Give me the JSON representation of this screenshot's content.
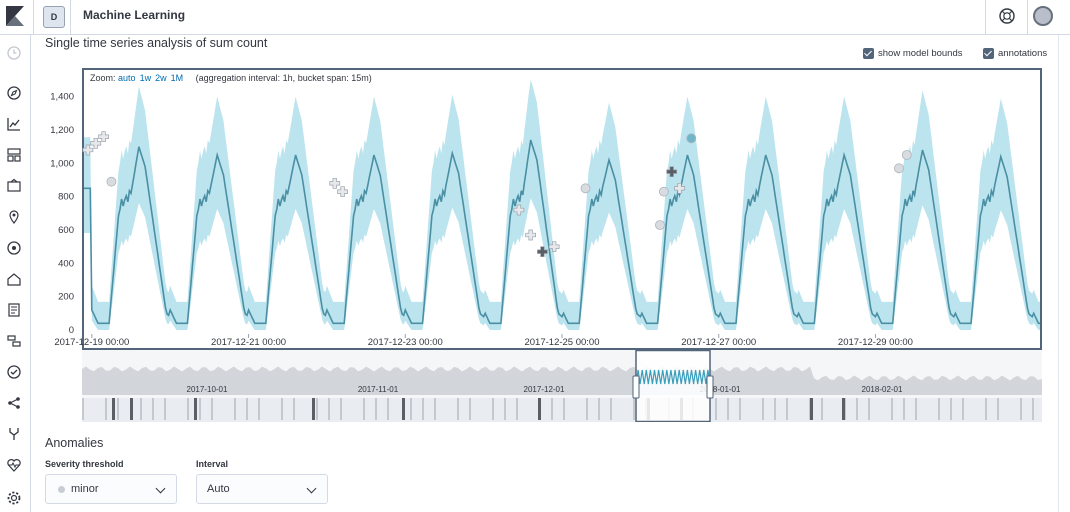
{
  "header": {
    "app_badge": "D",
    "app_title": "Machine Learning"
  },
  "panel": {
    "title": "Single time series analysis of sum count",
    "show_model_bounds_label": "show model bounds",
    "annotations_label": "annotations",
    "show_model_bounds_checked": true,
    "annotations_checked": true
  },
  "zoom": {
    "label": "Zoom:",
    "options": [
      "auto",
      "1w",
      "2w",
      "1M"
    ],
    "note": "(aggregation interval: 1h, bucket span: 15m)"
  },
  "chart_data": {
    "type": "line",
    "title": "",
    "xlabel": "",
    "ylabel": "",
    "ylim": [
      0,
      1500
    ],
    "yticks": [
      "0",
      "200",
      "400",
      "600",
      "800",
      "1,000",
      "1,200",
      "1,400"
    ],
    "xticks": [
      "2017-12-19 00:00",
      "2017-12-21 00:00",
      "2017-12-23 00:00",
      "2017-12-25 00:00",
      "2017-12-27 00:00",
      "2017-12-29 00:00"
    ],
    "xrange_days": [
      -0.1,
      12.1
    ],
    "xtick_days": [
      0,
      2,
      4,
      6,
      8,
      10
    ],
    "series": [
      {
        "values_note": "daily peaks (day offset, value)",
        "peaks": [
          [
            0.6,
            1100
          ],
          [
            1.7,
            1050
          ],
          [
            3.6,
            1050
          ],
          [
            4.6,
            1060
          ],
          [
            5.6,
            1140
          ],
          [
            6.6,
            1020
          ],
          [
            8.6,
            1050
          ],
          [
            9.6,
            1050
          ],
          [
            10.6,
            1080
          ],
          [
            11.6,
            1040
          ]
        ],
        "trough": 40,
        "start": 850
      }
    ],
    "anomalies": [
      {
        "day": -0.05,
        "value": 1080,
        "kind": "cross"
      },
      {
        "day": 0.05,
        "value": 1120,
        "kind": "cross"
      },
      {
        "day": 0.15,
        "value": 1160,
        "kind": "cross"
      },
      {
        "day": 0.25,
        "value": 890,
        "kind": "circle"
      },
      {
        "day": 3.1,
        "value": 880,
        "kind": "cross"
      },
      {
        "day": 3.2,
        "value": 830,
        "kind": "cross"
      },
      {
        "day": 5.45,
        "value": 720,
        "kind": "cross"
      },
      {
        "day": 5.6,
        "value": 570,
        "kind": "cross"
      },
      {
        "day": 5.75,
        "value": 470,
        "kind": "cross-dark"
      },
      {
        "day": 5.9,
        "value": 500,
        "kind": "cross"
      },
      {
        "day": 6.3,
        "value": 850,
        "kind": "circle"
      },
      {
        "day": 7.25,
        "value": 630,
        "kind": "circle"
      },
      {
        "day": 7.3,
        "value": 830,
        "kind": "circle"
      },
      {
        "day": 7.4,
        "value": 950,
        "kind": "cross-dark"
      },
      {
        "day": 7.5,
        "value": 850,
        "kind": "cross"
      },
      {
        "day": 7.65,
        "value": 1150,
        "kind": "circle-blue"
      },
      {
        "day": 10.3,
        "value": 970,
        "kind": "circle"
      },
      {
        "day": 10.4,
        "value": 1050,
        "kind": "circle"
      }
    ],
    "context": {
      "labels": [
        "2017-10-01",
        "2017-11-01",
        "2017-12-01",
        "2018-01-01",
        "2018-02-01"
      ],
      "selection_label": "2018-01-01"
    }
  },
  "anomalies_section": {
    "title": "Anomalies",
    "severity_label": "Severity threshold",
    "severity_value": "minor",
    "interval_label": "Interval",
    "interval_value": "Auto"
  },
  "colors": {
    "line": "#4a8fa3",
    "bounds": "#a6dbe8",
    "frame": "#52657a",
    "link": "#006bb4"
  }
}
